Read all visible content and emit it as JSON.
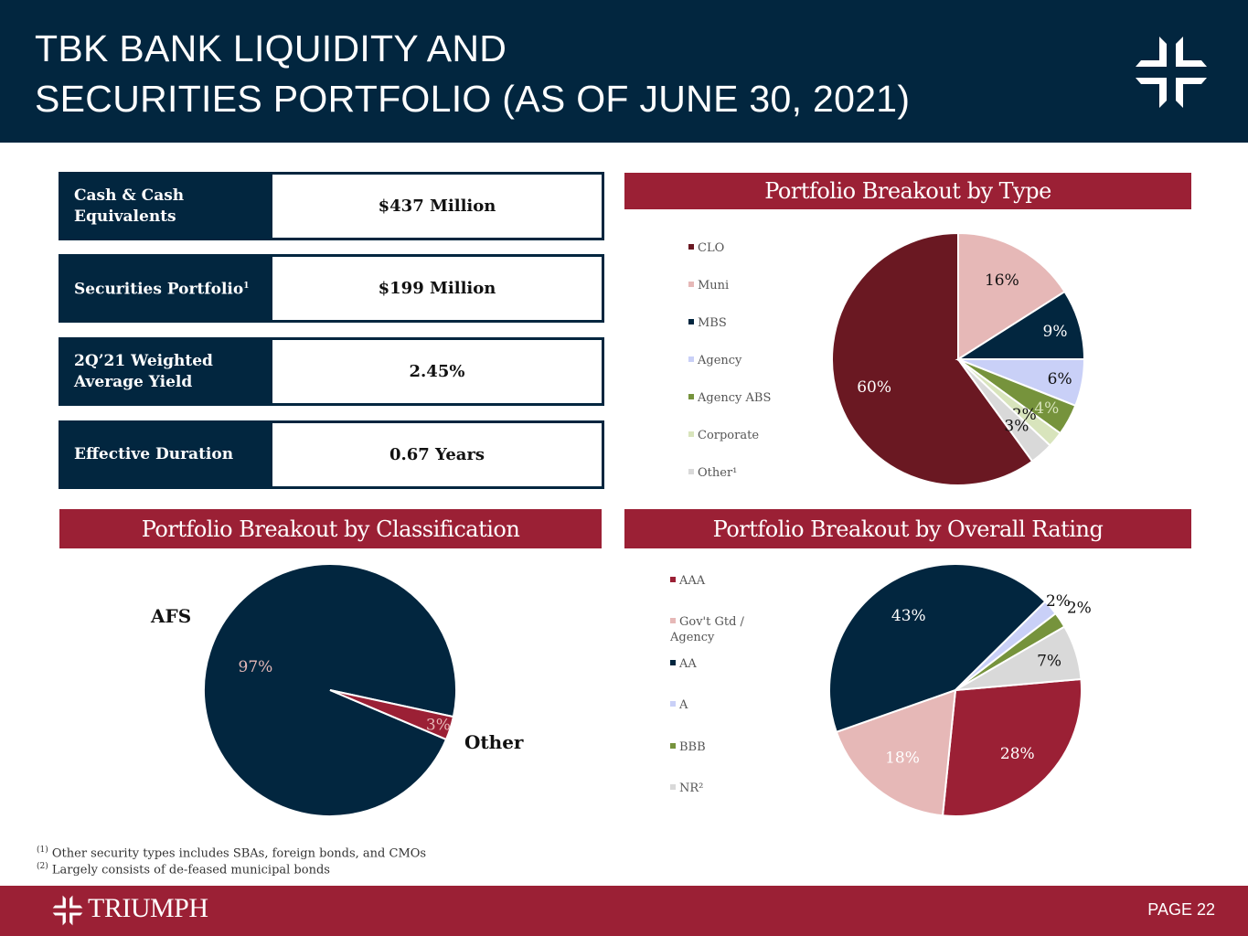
{
  "header": {
    "title_line1": "TBK BANK LIQUIDITY AND",
    "title_line2": "SECURITIES PORTFOLIO (AS OF JUNE 30, 2021)"
  },
  "kpis": [
    {
      "label": "Cash & Cash Equivalents",
      "value": "$437 Million"
    },
    {
      "label": "Securities Portfolio",
      "footnote": "1",
      "value": "$199 Million"
    },
    {
      "label": "2Q’21 Weighted Average Yield",
      "value": "2.45%"
    },
    {
      "label": "Effective Duration",
      "value": "0.67 Years"
    }
  ],
  "colors": {
    "navy": "#02263f",
    "red": "#9b2035"
  },
  "chart_data": [
    {
      "type": "pie",
      "title": "Portfolio Breakout by Type",
      "legend": "left",
      "start_angle_deg": 144,
      "labels": [
        "CLO",
        "Muni",
        "MBS",
        "Agency",
        "Agency ABS",
        "Corporate",
        "Other¹"
      ],
      "values": [
        60,
        16,
        9,
        6,
        4,
        2,
        3
      ],
      "value_labels": [
        "60%",
        "16%",
        "9%",
        "6%",
        "4%",
        "2%",
        "3%"
      ],
      "colors": [
        "#6a1822",
        "#e6b8b7",
        "#02263f",
        "#c9d0f7",
        "#76933c",
        "#d8e4bc",
        "#d9d9d9"
      ],
      "label_colors": [
        "#fff",
        "#111",
        "#fff",
        "#111",
        "#d8e4bc",
        "#111",
        "#111"
      ]
    },
    {
      "type": "pie",
      "title": "Portfolio Breakout by Classification",
      "legend": "none",
      "start_angle_deg": 113,
      "labels": [
        "AFS",
        "Other"
      ],
      "values": [
        97,
        3
      ],
      "value_labels": [
        "97%",
        "3%"
      ],
      "colors": [
        "#02263f",
        "#9b2035"
      ],
      "label_colors": [
        "#e6b8b7",
        "#e6b8b7"
      ]
    },
    {
      "type": "pie",
      "title": "Portfolio Breakout by Overall Rating",
      "legend": "left",
      "start_angle_deg": 85,
      "labels": [
        "AAA",
        "Gov't Gtd / Agency",
        "AA",
        "A",
        "BBB",
        "NR²"
      ],
      "values": [
        28,
        18,
        43,
        2,
        2,
        7
      ],
      "value_labels": [
        "28%",
        "18%",
        "43%",
        "2%",
        "2%",
        "7%"
      ],
      "colors": [
        "#9b2035",
        "#e6b8b7",
        "#02263f",
        "#c9d0f7",
        "#76933c",
        "#d9d9d9"
      ],
      "label_colors": [
        "#fff",
        "#fff",
        "#fff",
        "#111",
        "#111",
        "#111"
      ]
    }
  ],
  "footnotes": [
    {
      "mark": "(1)",
      "text": "Other security types includes SBAs, foreign bonds, and CMOs"
    },
    {
      "mark": "(2)",
      "text": "Largely consists of de-feased municipal bonds"
    }
  ],
  "footer": {
    "brand": "TRIUMPH",
    "page": "PAGE 22"
  }
}
